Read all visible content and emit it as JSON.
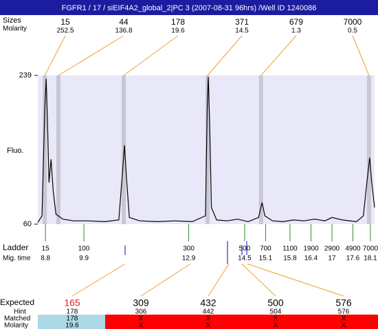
{
  "header": {
    "title": "FGFR1 / 17 / siEIF4A2_global_2|PC 3 (2007-08-31 96hrs) /Well ID 1240086"
  },
  "peaks": {
    "size_label": "Sizes",
    "molarity_label": "Molarity",
    "sizes": [
      15,
      44,
      178,
      371,
      679,
      7000
    ],
    "molarity": [
      252.5,
      136.8,
      19.6,
      14.5,
      1.3,
      0.5
    ],
    "times": [
      8.78,
      9.17,
      11.04,
      13.44,
      14.97,
      18.06
    ]
  },
  "chart_data": {
    "type": "line",
    "y_label": "Fluo.",
    "color": "#000000",
    "x": [
      8.58,
      8.7,
      8.78,
      8.82,
      8.86,
      8.9,
      8.96,
      9.02,
      9.1,
      9.3,
      9.6,
      10.0,
      10.5,
      10.9,
      11.0,
      11.06,
      11.12,
      11.2,
      11.5,
      12.0,
      12.5,
      13.0,
      13.38,
      13.43,
      13.46,
      13.5,
      13.55,
      13.7,
      14.0,
      14.3,
      14.6,
      14.9,
      15.0,
      15.08,
      15.3,
      15.6,
      15.9,
      16.2,
      16.5,
      16.8,
      17.0,
      17.3,
      17.7,
      17.9,
      18.0,
      18.08,
      18.14,
      18.22
    ],
    "values": [
      62,
      70,
      200,
      235,
      180,
      110,
      138,
      100,
      72,
      66,
      64,
      64,
      63,
      65,
      120,
      155,
      115,
      68,
      64,
      63,
      64,
      63,
      70,
      200,
      237,
      180,
      80,
      65,
      64,
      66,
      63,
      68,
      86,
      70,
      64,
      63,
      65,
      64,
      66,
      64,
      68,
      65,
      63,
      70,
      110,
      140,
      110,
      80
    ],
    "xlim": [
      8.58,
      18.22
    ],
    "ylim": [
      60,
      239
    ],
    "yticks": [
      60,
      239
    ],
    "ladder_label": "Ladder",
    "xtick_label": "Mig. time",
    "ladder_sizes": [
      15,
      100,
      300,
      500,
      700,
      1100,
      1900,
      2900,
      4900,
      7000
    ],
    "xticks": [
      8.8,
      9.9,
      12.9,
      14.5,
      15.1,
      15.8,
      16.4,
      17,
      17.6,
      18.1
    ]
  },
  "expected_table": {
    "labels": [
      "Expected",
      "Hint",
      "Matched",
      "Molarity"
    ],
    "expected": [
      165,
      309,
      432,
      500,
      576
    ],
    "hint": [
      178,
      306,
      442,
      504,
      576
    ],
    "matched": [
      "178",
      "X",
      "X",
      "X",
      "X"
    ],
    "molarity": [
      "19.6",
      "X",
      "X",
      "X",
      "X"
    ]
  }
}
